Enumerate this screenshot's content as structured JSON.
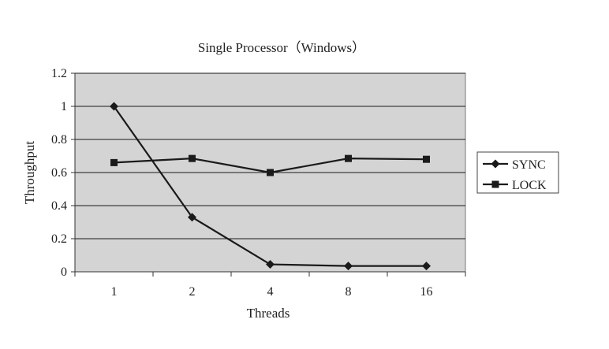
{
  "chart_data": {
    "type": "line",
    "title": "Single Processor（Windows）",
    "xlabel": "Threads",
    "ylabel": "Throughput",
    "categories": [
      "1",
      "2",
      "4",
      "8",
      "16"
    ],
    "ylim": [
      0,
      1.2
    ],
    "yticks": [
      "0",
      "0.2",
      "0.4",
      "0.6",
      "0.8",
      "1",
      "1.2"
    ],
    "grid": true,
    "legend_position": "right",
    "plot_background": "#d4d4d4",
    "series": [
      {
        "name": "SYNC",
        "marker": "diamond",
        "color": "#1a1a1a",
        "values": [
          1.0,
          0.33,
          0.045,
          0.035,
          0.035
        ]
      },
      {
        "name": "LOCK",
        "marker": "square",
        "color": "#1a1a1a",
        "values": [
          0.66,
          0.685,
          0.6,
          0.685,
          0.68
        ]
      }
    ]
  }
}
